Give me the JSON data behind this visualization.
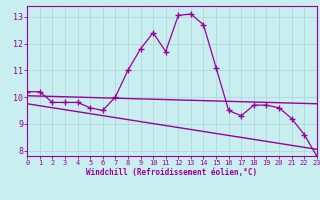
{
  "xlabel": "Windchill (Refroidissement éolien,°C)",
  "bg_color": "#c8eef0",
  "line_color": "#990099",
  "x_data": [
    0,
    1,
    2,
    3,
    4,
    5,
    6,
    7,
    8,
    9,
    10,
    11,
    12,
    13,
    14,
    15,
    16,
    17,
    18,
    19,
    20,
    21,
    22,
    23
  ],
  "y_curve": [
    10.2,
    10.2,
    9.8,
    9.8,
    9.8,
    9.6,
    9.5,
    10.0,
    11.0,
    11.8,
    12.4,
    11.7,
    13.05,
    13.1,
    12.7,
    11.1,
    9.5,
    9.3,
    9.7,
    9.7,
    9.6,
    9.2,
    8.6,
    7.8
  ],
  "y_line1_x": [
    0,
    23
  ],
  "y_line1_y": [
    10.05,
    9.75
  ],
  "y_line2_x": [
    0,
    23
  ],
  "y_line2_y": [
    9.75,
    8.05
  ],
  "xlim": [
    0,
    23
  ],
  "ylim": [
    7.8,
    13.4
  ],
  "yticks": [
    8,
    9,
    10,
    11,
    12,
    13
  ],
  "xticks": [
    0,
    1,
    2,
    3,
    4,
    5,
    6,
    7,
    8,
    9,
    10,
    11,
    12,
    13,
    14,
    15,
    16,
    17,
    18,
    19,
    20,
    21,
    22,
    23
  ],
  "grid_color": "#b0d8dc",
  "tick_color": "#990099",
  "label_color": "#990099",
  "spine_color": "#990099"
}
